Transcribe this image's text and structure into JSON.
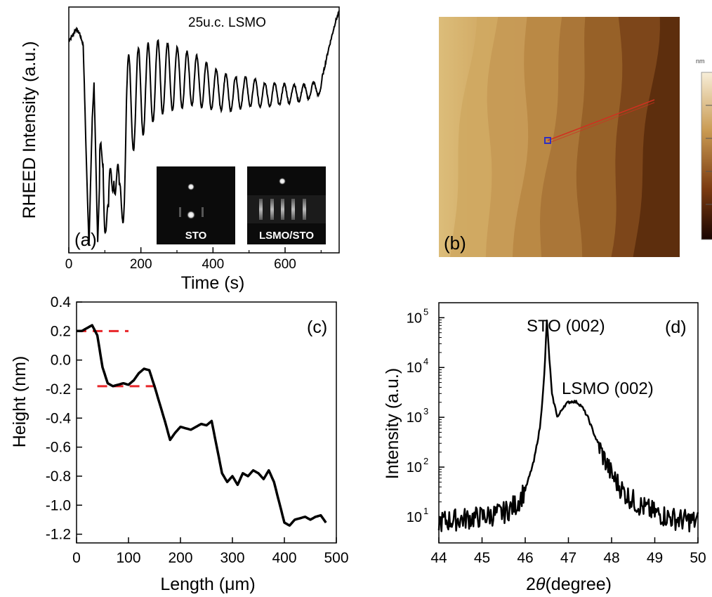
{
  "panels": {
    "a": {
      "tag": "(a)",
      "annotation": "25u.c. LSMO",
      "inset_left_label": "STO",
      "inset_right_label": "LSMO/STO",
      "xlabel": "Time (s)",
      "ylabel": "RHEED Intensity (a.u.)"
    },
    "b": {
      "tag": "(b)",
      "colorbar_unit": "nm"
    },
    "c": {
      "tag": "(c)",
      "xlabel_prefix": "Length (",
      "xlabel_mu": "μ",
      "xlabel_suffix": "m)",
      "ylabel": "Height (nm)"
    },
    "d": {
      "tag": "(d)",
      "peak1": "STO (002)",
      "peak2": "LSMO (002)",
      "xlabel_theta": "θ",
      "xlabel_2": "2",
      "xlabel_suffix": "(degree)",
      "ylabel": "Intensity (a.u.)"
    }
  },
  "colors": {
    "line": "#000000",
    "dash": "#e8262a",
    "afm_light": "#d8b877",
    "afm_mid": "#b9873c",
    "afm_dark": "#3a1405",
    "profile_line": "#d03020",
    "marker": "#3030c0"
  },
  "chart_data": [
    {
      "panel": "a",
      "type": "line",
      "xlabel": "Time (s)",
      "ylabel": "RHEED Intensity (a.u.)",
      "xlim": [
        0,
        750
      ],
      "x_ticks": [
        0,
        200,
        400,
        600
      ],
      "y_ticks": [],
      "annotation": "25u.c. LSMO",
      "description_points": {
        "x": [
          0,
          10,
          20,
          30,
          40,
          50,
          56,
          65,
          70,
          80,
          95,
          110,
          125,
          140,
          160,
          200,
          250,
          300,
          350,
          400,
          450,
          500,
          550,
          600,
          650,
          700,
          720,
          740,
          750
        ],
        "y": [
          0.88,
          0.9,
          0.93,
          0.91,
          0.86,
          0.3,
          0.02,
          0.55,
          0.7,
          0.03,
          0.72,
          0.1,
          0.7,
          0.18,
          0.72,
          0.78,
          0.82,
          0.8,
          0.78,
          0.73,
          0.7,
          0.7,
          0.68,
          0.68,
          0.68,
          0.7,
          0.84,
          0.96,
          1.0
        ]
      },
      "oscillation": {
        "period_s": 27,
        "count": 25
      }
    },
    {
      "panel": "c",
      "type": "line",
      "xlabel": "Length (μm)",
      "ylabel": "Height (nm)",
      "xlim": [
        0,
        500
      ],
      "ylim": [
        -1.25,
        0.4
      ],
      "x_ticks": [
        0,
        100,
        200,
        300,
        400,
        500
      ],
      "y_ticks": [
        0.4,
        0.2,
        0.0,
        -0.2,
        -0.4,
        -0.6,
        -0.8,
        -1.0,
        -1.2
      ],
      "x": [
        0,
        10,
        20,
        30,
        40,
        50,
        60,
        70,
        80,
        90,
        100,
        110,
        120,
        130,
        140,
        150,
        160,
        170,
        180,
        190,
        200,
        210,
        220,
        230,
        240,
        250,
        260,
        270,
        280,
        290,
        300,
        310,
        320,
        330,
        340,
        350,
        360,
        370,
        380,
        390,
        400,
        410,
        420,
        430,
        440,
        450,
        460,
        470,
        480
      ],
      "y": [
        0.2,
        0.2,
        0.22,
        0.24,
        0.17,
        -0.05,
        -0.16,
        -0.18,
        -0.17,
        -0.16,
        -0.17,
        -0.14,
        -0.09,
        -0.06,
        -0.07,
        -0.18,
        -0.3,
        -0.42,
        -0.55,
        -0.5,
        -0.46,
        -0.47,
        -0.48,
        -0.46,
        -0.44,
        -0.45,
        -0.42,
        -0.6,
        -0.78,
        -0.84,
        -0.8,
        -0.86,
        -0.78,
        -0.8,
        -0.76,
        -0.78,
        -0.82,
        -0.76,
        -0.84,
        -0.98,
        -1.12,
        -1.14,
        -1.1,
        -1.09,
        -1.08,
        -1.1,
        -1.08,
        -1.07,
        -1.12
      ],
      "dashes": [
        {
          "x": [
            0,
            100
          ],
          "y": 0.2
        },
        {
          "x": [
            40,
            155
          ],
          "y": -0.18
        }
      ]
    },
    {
      "panel": "d",
      "type": "line",
      "scale": "log",
      "xlabel": "2θ (degree)",
      "ylabel": "Intensity (a.u.)",
      "xlim": [
        44,
        50
      ],
      "ylim": [
        3,
        200000
      ],
      "x_ticks": [
        44,
        45,
        46,
        47,
        48,
        49,
        50
      ],
      "y_ticks": [
        10,
        100,
        1000,
        10000,
        100000
      ],
      "y_tick_labels": [
        "10",
        "10",
        "10",
        "10",
        "10"
      ],
      "y_tick_exponents": [
        "1",
        "2",
        "3",
        "4",
        "5"
      ],
      "annotations": [
        "STO (002)",
        "LSMO (002)"
      ],
      "x": [
        44.0,
        44.5,
        45.0,
        45.5,
        45.8,
        46.0,
        46.2,
        46.35,
        46.45,
        46.5,
        46.55,
        46.62,
        46.75,
        46.9,
        47.0,
        47.1,
        47.2,
        47.3,
        47.45,
        47.6,
        47.8,
        48.0,
        48.3,
        48.6,
        49.0,
        49.5,
        50.0
      ],
      "y": [
        8,
        9,
        10,
        12,
        18,
        35,
        130,
        700,
        9000,
        90000,
        20000,
        2800,
        1000,
        1700,
        2000,
        2100,
        2000,
        1700,
        1000,
        450,
        170,
        70,
        30,
        18,
        12,
        9,
        8
      ]
    }
  ]
}
